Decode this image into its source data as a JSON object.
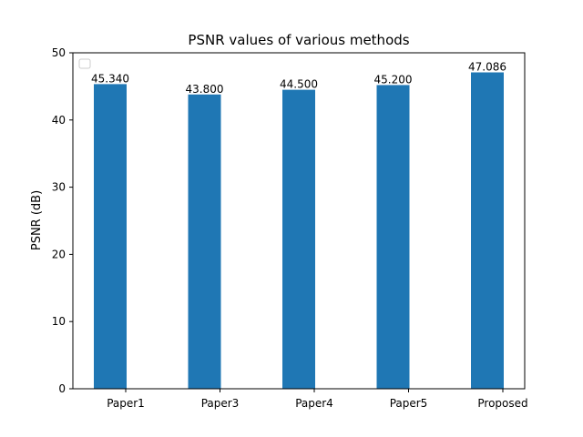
{
  "chart_data": {
    "type": "bar",
    "title": "PSNR values of various methods",
    "xlabel": "",
    "ylabel": "PSNR (dB)",
    "categories": [
      "Paper1",
      "Paper3",
      "Paper4",
      "Paper5",
      "Proposed"
    ],
    "values": [
      45.34,
      43.8,
      44.5,
      45.2,
      47.086
    ],
    "data_labels": [
      "45.340",
      "43.800",
      "44.500",
      "45.200",
      "47.086"
    ],
    "ylim": [
      0,
      50
    ],
    "yticks": [
      0,
      10,
      20,
      30,
      40,
      50
    ],
    "grid": false,
    "legend": {
      "placement": "upper-left",
      "entries": []
    },
    "bar_color": "#1f77b4"
  }
}
